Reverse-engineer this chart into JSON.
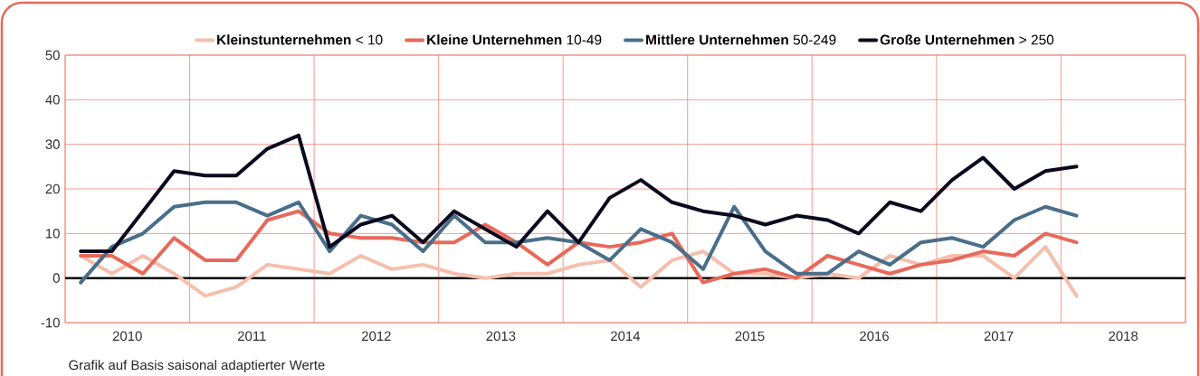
{
  "chart_data": {
    "type": "line",
    "x": [
      2010.125,
      2010.375,
      2010.625,
      2010.875,
      2011.125,
      2011.375,
      2011.625,
      2011.875,
      2012.125,
      2012.375,
      2012.625,
      2012.875,
      2013.125,
      2013.375,
      2013.625,
      2013.875,
      2014.125,
      2014.375,
      2014.625,
      2014.875,
      2015.125,
      2015.375,
      2015.625,
      2015.875,
      2016.125,
      2016.375,
      2016.625,
      2016.875,
      2017.125,
      2017.375,
      2017.625,
      2017.875,
      2018.125
    ],
    "series": [
      {
        "name": "**Kleinstunternehmen** < 10",
        "color": "#f5bfad",
        "values": [
          5,
          1,
          5,
          1,
          -4,
          -2,
          3,
          2,
          1,
          5,
          2,
          3,
          1,
          0,
          1,
          1,
          3,
          4,
          -2,
          4,
          6,
          1,
          1,
          0,
          1,
          0,
          5,
          3,
          5,
          5,
          0,
          7,
          -4
        ]
      },
      {
        "name": "**Kleine Unternehmen** 10-49",
        "color": "#e8695a",
        "values": [
          5,
          5,
          1,
          9,
          4,
          4,
          13,
          15,
          10,
          9,
          9,
          8,
          8,
          12,
          8,
          3,
          8,
          7,
          8,
          10,
          -1,
          1,
          2,
          0,
          5,
          3,
          1,
          3,
          4,
          6,
          5,
          10,
          8
        ]
      },
      {
        "name": "**Mittlere Unternehmen** 50-249",
        "color": "#4a6e8a",
        "values": [
          -1,
          7,
          10,
          16,
          17,
          17,
          14,
          17,
          6,
          14,
          12,
          6,
          14,
          8,
          8,
          9,
          8,
          4,
          11,
          8,
          2,
          16,
          6,
          1,
          1,
          6,
          3,
          8,
          9,
          7,
          13,
          16,
          14
        ]
      },
      {
        "name": "**Große Unternehmen** > 250",
        "color": "#0a0a1e",
        "values": [
          6,
          6,
          15,
          24,
          23,
          23,
          29,
          32,
          7,
          12,
          14,
          8,
          15,
          11,
          7,
          15,
          8,
          18,
          22,
          17,
          15,
          14,
          12,
          14,
          13,
          10,
          17,
          15,
          22,
          27,
          20,
          24,
          25
        ]
      }
    ],
    "xlim": [
      2010,
      2019
    ],
    "xticks": [
      {
        "value": 2010.5,
        "label": "2010"
      },
      {
        "value": 2011.5,
        "label": "2011"
      },
      {
        "value": 2012.5,
        "label": "2012"
      },
      {
        "value": 2013.5,
        "label": "2013"
      },
      {
        "value": 2014.5,
        "label": "2014"
      },
      {
        "value": 2015.5,
        "label": "2015"
      },
      {
        "value": 2016.5,
        "label": "2016"
      },
      {
        "value": 2017.5,
        "label": "2017"
      },
      {
        "value": 2018.5,
        "label": "2018"
      },
      {
        "value": 2010,
        "label": null
      },
      {
        "value": 2011,
        "label": null
      },
      {
        "value": 2012,
        "label": null
      },
      {
        "value": 2013,
        "label": null
      },
      {
        "value": 2014,
        "label": null
      },
      {
        "value": 2015,
        "label": null
      },
      {
        "value": 2016,
        "label": null
      },
      {
        "value": 2017,
        "label": null
      },
      {
        "value": 2018,
        "label": null
      },
      {
        "value": 2019,
        "label": null
      }
    ],
    "ylim": [
      -10,
      50
    ],
    "yticks": [
      -10,
      0,
      10,
      20,
      30,
      40,
      50
    ],
    "ref_lines": [
      {
        "axis": "y",
        "value": 0,
        "color": "#000000"
      }
    ],
    "annotations": [
      "Grafik auf Basis saisonal adaptierter Werte"
    ],
    "grid": true,
    "legend": "top",
    "marker": "none",
    "line_style": "solid"
  }
}
